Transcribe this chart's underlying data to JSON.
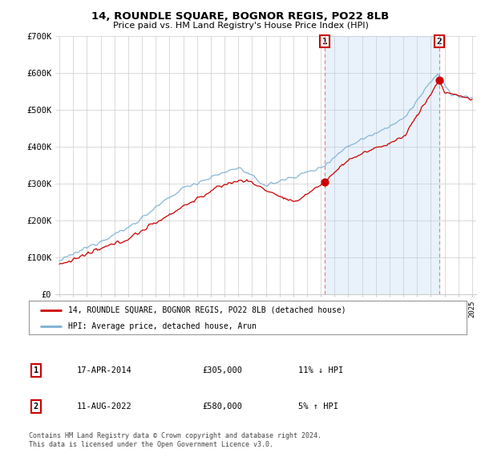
{
  "title": "14, ROUNDLE SQUARE, BOGNOR REGIS, PO22 8LB",
  "subtitle": "Price paid vs. HM Land Registry's House Price Index (HPI)",
  "legend_line1": "14, ROUNDLE SQUARE, BOGNOR REGIS, PO22 8LB (detached house)",
  "legend_line2": "HPI: Average price, detached house, Arun",
  "annotation1_label": "1",
  "annotation1_date": "17-APR-2014",
  "annotation1_price": "£305,000",
  "annotation1_hpi": "11% ↓ HPI",
  "annotation2_label": "2",
  "annotation2_date": "11-AUG-2022",
  "annotation2_price": "£580,000",
  "annotation2_hpi": "5% ↑ HPI",
  "footnote1": "Contains HM Land Registry data © Crown copyright and database right 2024.",
  "footnote2": "This data is licensed under the Open Government Licence v3.0.",
  "hpi_color": "#7bafd4",
  "price_color": "#cc0000",
  "annotation_line_color": "#e08080",
  "shade_color": "#ddeeff",
  "ylim": [
    0,
    700000
  ],
  "yticks": [
    0,
    100000,
    200000,
    300000,
    400000,
    500000,
    600000,
    700000
  ],
  "ytick_labels": [
    "£0",
    "£100K",
    "£200K",
    "£300K",
    "£400K",
    "£500K",
    "£600K",
    "£700K"
  ],
  "sale1_year": 2014.29,
  "sale1_value": 305000,
  "sale2_year": 2022.6,
  "sale2_value": 580000,
  "background_color": "#ffffff",
  "grid_color": "#cccccc"
}
